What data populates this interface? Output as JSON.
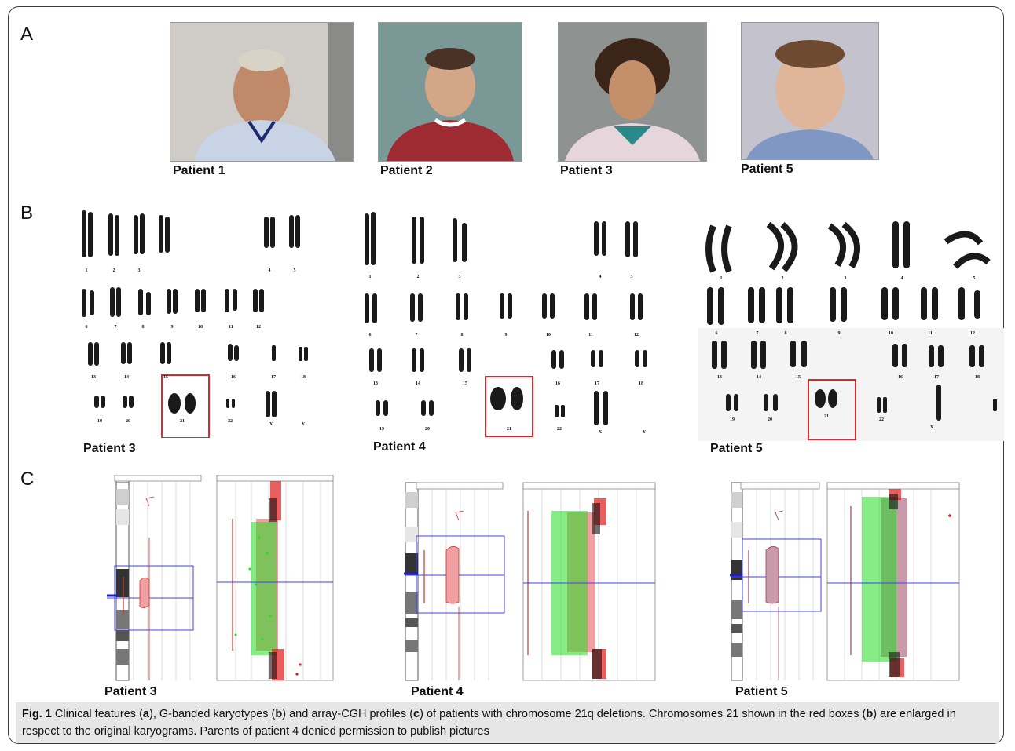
{
  "panels": {
    "a": "A",
    "b": "B",
    "c": "C"
  },
  "photos": [
    {
      "label": "Patient 1"
    },
    {
      "label": "Patient 2"
    },
    {
      "label": "Patient 3"
    },
    {
      "label": "Patient 5"
    }
  ],
  "karyotypes": [
    {
      "label": "Patient 3",
      "row1": [
        "1",
        "2",
        "3",
        "4",
        "5"
      ],
      "row2": [
        "6",
        "7",
        "8",
        "9",
        "10",
        "11",
        "12"
      ],
      "row3": [
        "13",
        "14",
        "15",
        "16",
        "17",
        "18"
      ],
      "row4": [
        "19",
        "20",
        "21",
        "22",
        "X",
        "Y"
      ]
    },
    {
      "label": "Patient 4",
      "row1": [
        "1",
        "2",
        "3",
        "4",
        "5"
      ],
      "row2": [
        "6",
        "7",
        "8",
        "9",
        "10",
        "11",
        "12"
      ],
      "row3": [
        "13",
        "14",
        "15",
        "16",
        "17",
        "18"
      ],
      "row4": [
        "19",
        "20",
        "21",
        "22",
        "X",
        "Y"
      ]
    },
    {
      "label": "Patient 5",
      "row1": [
        "1",
        "2",
        "3",
        "4",
        "5"
      ],
      "row2": [
        "6",
        "7",
        "8",
        "9",
        "10",
        "11",
        "12"
      ],
      "row3": [
        "13",
        "14",
        "15",
        "16",
        "17",
        "18"
      ],
      "row4": [
        "19",
        "20",
        "21",
        "22",
        "X"
      ]
    }
  ],
  "arrays": [
    {
      "label": "Patient 3"
    },
    {
      "label": "Patient 4"
    },
    {
      "label": "Patient 5"
    }
  ],
  "caption": {
    "fig": "Fig. 1",
    "t1": " Clinical features (",
    "a": "a",
    "t2": "), G-banded karyotypes (",
    "b": "b",
    "t3": ") and array-CGH profiles (",
    "c": "c",
    "t4": ") of patients with chromosome 21q deletions. Chromosomes 21 shown in the red boxes (",
    "b2": "b",
    "t5": ") are enlarged in respect to the original karyograms. Parents of patient 4 denied permission to publish pictures"
  },
  "colors": {
    "highlight_box": "#e0262a",
    "gain_dots": "#22dd22",
    "loss_dots": "#e01a1a",
    "deletion_fill": "#f0a0a0",
    "array_line": "#4040ee"
  }
}
